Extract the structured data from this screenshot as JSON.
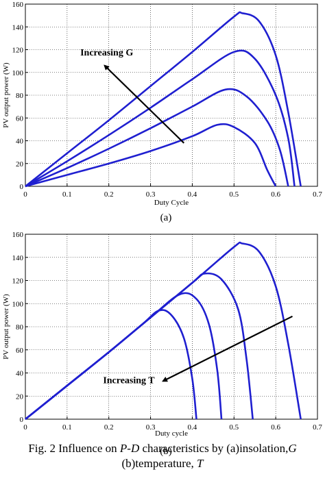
{
  "chart_data": [
    {
      "type": "line",
      "ylabel": "PV output power (W)",
      "xlabel": "Duty Cycle",
      "xlim": [
        0,
        0.7
      ],
      "ylim": [
        0,
        160
      ],
      "xticks": [
        "0",
        "0.1",
        "0.2",
        "0.3",
        "0.4",
        "0.5",
        "0.6",
        "0.7"
      ],
      "yticks": [
        "0",
        "20",
        "40",
        "60",
        "80",
        "100",
        "120",
        "140",
        "160"
      ],
      "grid": true,
      "line_color": "#1f1fd0",
      "annotation": {
        "text": "Increasing G",
        "arrow_from": [
          0.38,
          38
        ],
        "arrow_to": [
          0.19,
          106
        ]
      },
      "sublabel": "(a)",
      "series": [
        {
          "values": [
            [
              0,
              0
            ],
            [
              0.1,
              10
            ],
            [
              0.2,
              20
            ],
            [
              0.3,
              31
            ],
            [
              0.4,
              44
            ],
            [
              0.46,
              54
            ],
            [
              0.5,
              52
            ],
            [
              0.55,
              38
            ],
            [
              0.58,
              14
            ],
            [
              0.6,
              0
            ]
          ]
        },
        {
          "values": [
            [
              0,
              0
            ],
            [
              0.1,
              16
            ],
            [
              0.2,
              33
            ],
            [
              0.3,
              51
            ],
            [
              0.4,
              70
            ],
            [
              0.48,
              85
            ],
            [
              0.53,
              79
            ],
            [
              0.58,
              57
            ],
            [
              0.61,
              32
            ],
            [
              0.63,
              0
            ]
          ]
        },
        {
          "values": [
            [
              0,
              0
            ],
            [
              0.1,
              22
            ],
            [
              0.2,
              45
            ],
            [
              0.3,
              69
            ],
            [
              0.4,
              94
            ],
            [
              0.5,
              118
            ],
            [
              0.55,
              112
            ],
            [
              0.6,
              80
            ],
            [
              0.63,
              42
            ],
            [
              0.645,
              0
            ]
          ]
        },
        {
          "values": [
            [
              0,
              0
            ],
            [
              0.1,
              29
            ],
            [
              0.2,
              58
            ],
            [
              0.3,
              88
            ],
            [
              0.4,
              118
            ],
            [
              0.5,
              149
            ],
            [
              0.52,
              152
            ],
            [
              0.56,
              145
            ],
            [
              0.6,
              115
            ],
            [
              0.63,
              65
            ],
            [
              0.66,
              0
            ]
          ]
        }
      ]
    },
    {
      "type": "line",
      "ylabel": "PV output power (W)",
      "xlabel": "Duty cycle",
      "xlim": [
        0,
        0.7
      ],
      "ylim": [
        0,
        160
      ],
      "xticks": [
        "0",
        "0.1",
        "0.2",
        "0.3",
        "0.4",
        "0.5",
        "0.6",
        "0.7"
      ],
      "yticks": [
        "0",
        "20",
        "40",
        "60",
        "80",
        "100",
        "120",
        "140",
        "160"
      ],
      "grid": true,
      "line_color": "#1f1fd0",
      "annotation": {
        "text": "Increasing T",
        "arrow_from": [
          0.64,
          89
        ],
        "arrow_to": [
          0.33,
          33
        ]
      },
      "sublabel": "(b)",
      "series": [
        {
          "values": [
            [
              0,
              0
            ],
            [
              0.1,
              29
            ],
            [
              0.2,
              58
            ],
            [
              0.28,
              82
            ],
            [
              0.32,
              94
            ],
            [
              0.35,
              90
            ],
            [
              0.38,
              70
            ],
            [
              0.4,
              35
            ],
            [
              0.41,
              0
            ]
          ]
        },
        {
          "values": [
            [
              0,
              0
            ],
            [
              0.1,
              29
            ],
            [
              0.2,
              58
            ],
            [
              0.3,
              88
            ],
            [
              0.37,
              108
            ],
            [
              0.41,
              104
            ],
            [
              0.44,
              82
            ],
            [
              0.46,
              42
            ],
            [
              0.47,
              0
            ]
          ]
        },
        {
          "values": [
            [
              0,
              0
            ],
            [
              0.1,
              29
            ],
            [
              0.2,
              58
            ],
            [
              0.3,
              88
            ],
            [
              0.4,
              118
            ],
            [
              0.43,
              126
            ],
            [
              0.47,
              121
            ],
            [
              0.51,
              95
            ],
            [
              0.53,
              52
            ],
            [
              0.545,
              0
            ]
          ]
        },
        {
          "values": [
            [
              0,
              0
            ],
            [
              0.1,
              29
            ],
            [
              0.2,
              58
            ],
            [
              0.3,
              88
            ],
            [
              0.4,
              118
            ],
            [
              0.5,
              149
            ],
            [
              0.52,
              152
            ],
            [
              0.56,
              145
            ],
            [
              0.6,
              115
            ],
            [
              0.63,
              65
            ],
            [
              0.66,
              0
            ]
          ]
        }
      ]
    }
  ],
  "caption": {
    "line1_prefix": "Fig. 2  Influence on ",
    "line1_italic": "P-D",
    "line1_mid": " characteristics by (a)insolation,",
    "line1_italic2": "G",
    "line2_prefix": "(b)temperature, ",
    "line2_italic": "T"
  }
}
